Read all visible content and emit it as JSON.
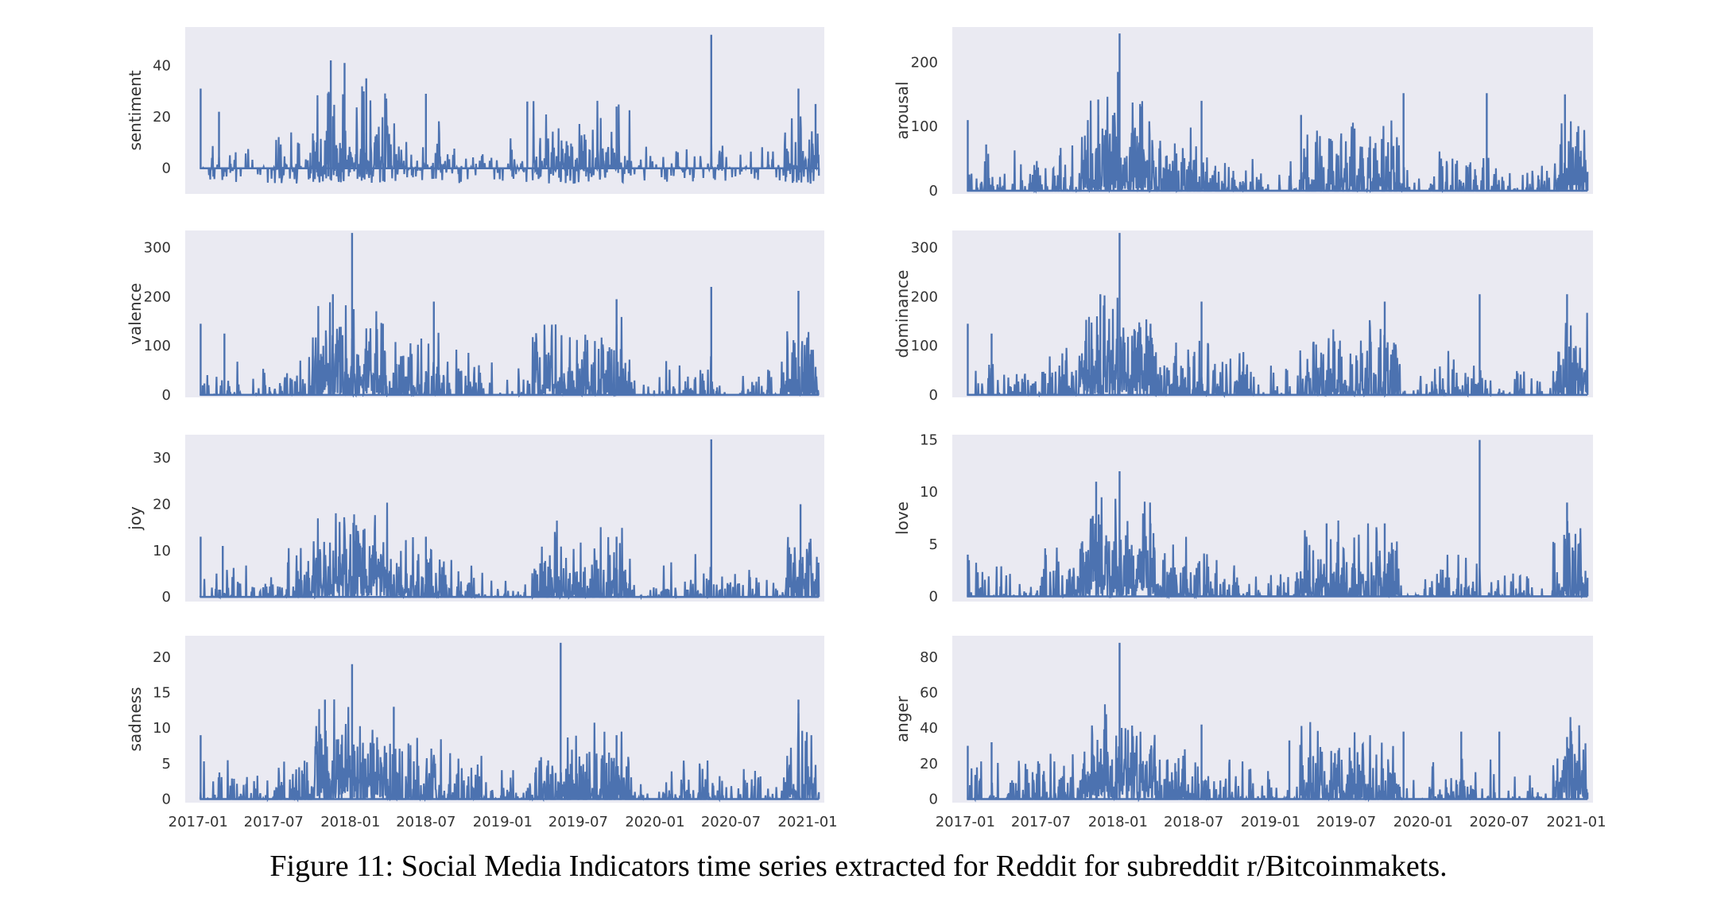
{
  "caption": "Figure 11: Social Media Indicators time series extracted for Reddit for subreddit r/Bitcoinmakets.",
  "colors": {
    "panel_bg": "#eaeaf2",
    "series": "#4c72b0",
    "text": "#333333"
  },
  "chart_data": [
    {
      "type": "line",
      "ylabel": "sentiment",
      "yticks": [
        0,
        20,
        40
      ],
      "ylim": [
        -10,
        55
      ],
      "baseline": 0,
      "xticks": [
        "2017-01",
        "2017-07",
        "2018-01",
        "2018-07",
        "2019-01",
        "2019-07",
        "2020-01",
        "2020-07",
        "2021-01"
      ],
      "xlim": [
        "2016-12-01",
        "2021-02-10"
      ],
      "grid": false,
      "peaks": [
        [
          "2017-01-07",
          31
        ],
        [
          "2017-02-20",
          22
        ],
        [
          "2017-11-15",
          42
        ],
        [
          "2017-12-18",
          41
        ],
        [
          "2018-02-08",
          35
        ],
        [
          "2018-07-01",
          29
        ],
        [
          "2019-03-01",
          26
        ],
        [
          "2019-10-01",
          24
        ],
        [
          "2020-05-15",
          52
        ],
        [
          "2020-12-10",
          31
        ],
        [
          "2021-01-20",
          25
        ]
      ]
    },
    {
      "type": "line",
      "ylabel": "arousal",
      "yticks": [
        0,
        100,
        200
      ],
      "ylim": [
        -5,
        255
      ],
      "baseline": 0,
      "xticks": [
        "2017-01",
        "2017-07",
        "2018-01",
        "2018-07",
        "2019-01",
        "2019-07",
        "2020-01",
        "2020-07",
        "2021-01"
      ],
      "xlim": [
        "2016-12-01",
        "2021-02-10"
      ],
      "grid": false,
      "peaks": [
        [
          "2017-01-07",
          110
        ],
        [
          "2017-02-20",
          72
        ],
        [
          "2017-11-15",
          142
        ],
        [
          "2018-01-05",
          245
        ],
        [
          "2018-01-01",
          185
        ],
        [
          "2018-07-20",
          140
        ],
        [
          "2019-03-15",
          118
        ],
        [
          "2019-11-15",
          152
        ],
        [
          "2020-06-01",
          152
        ],
        [
          "2020-12-05",
          150
        ]
      ]
    },
    {
      "type": "line",
      "ylabel": "valence",
      "yticks": [
        0,
        100,
        200,
        300
      ],
      "ylim": [
        -5,
        335
      ],
      "baseline": 0,
      "xticks": [
        "2017-01",
        "2017-07",
        "2018-01",
        "2018-07",
        "2019-01",
        "2019-07",
        "2020-01",
        "2020-07",
        "2021-01"
      ],
      "xlim": [
        "2016-12-01",
        "2021-02-10"
      ],
      "grid": false,
      "peaks": [
        [
          "2017-01-07",
          145
        ],
        [
          "2017-03-05",
          125
        ],
        [
          "2017-11-20",
          205
        ],
        [
          "2018-01-05",
          330
        ],
        [
          "2018-03-20",
          145
        ],
        [
          "2018-07-20",
          190
        ],
        [
          "2019-10-01",
          195
        ],
        [
          "2020-05-15",
          220
        ],
        [
          "2020-12-10",
          212
        ]
      ]
    },
    {
      "type": "line",
      "ylabel": "dominance",
      "yticks": [
        0,
        100,
        200,
        300
      ],
      "ylim": [
        -5,
        335
      ],
      "baseline": 0,
      "xticks": [
        "2017-01",
        "2017-07",
        "2018-01",
        "2018-07",
        "2019-01",
        "2019-07",
        "2020-01",
        "2020-07",
        "2021-01"
      ],
      "xlim": [
        "2016-12-01",
        "2021-02-10"
      ],
      "grid": false,
      "peaks": [
        [
          "2017-01-07",
          145
        ],
        [
          "2017-03-05",
          125
        ],
        [
          "2017-11-20",
          205
        ],
        [
          "2018-01-05",
          330
        ],
        [
          "2018-03-20",
          145
        ],
        [
          "2018-07-20",
          190
        ],
        [
          "2019-10-01",
          190
        ],
        [
          "2020-05-15",
          205
        ],
        [
          "2020-12-10",
          205
        ]
      ]
    },
    {
      "type": "line",
      "ylabel": "joy",
      "yticks": [
        0,
        10,
        20,
        30
      ],
      "ylim": [
        -1,
        35
      ],
      "baseline": 0,
      "xticks": [
        "2017-01",
        "2017-07",
        "2018-01",
        "2018-07",
        "2019-01",
        "2019-07",
        "2020-01",
        "2020-07",
        "2021-01"
      ],
      "xlim": [
        "2016-12-01",
        "2021-02-10"
      ],
      "grid": false,
      "peaks": [
        [
          "2017-01-07",
          13
        ],
        [
          "2017-03-01",
          11
        ],
        [
          "2018-01-08",
          16
        ],
        [
          "2018-07-01",
          13
        ],
        [
          "2019-10-01",
          13
        ],
        [
          "2020-05-15",
          34
        ],
        [
          "2020-12-15",
          20
        ]
      ]
    },
    {
      "type": "line",
      "ylabel": "love",
      "yticks": [
        0,
        5,
        10,
        15
      ],
      "ylim": [
        -0.5,
        15.5
      ],
      "baseline": 0,
      "xticks": [
        "2017-01",
        "2017-07",
        "2018-01",
        "2018-07",
        "2019-01",
        "2019-07",
        "2020-01",
        "2020-07",
        "2021-01"
      ],
      "xlim": [
        "2016-12-01",
        "2021-02-10"
      ],
      "grid": false,
      "peaks": [
        [
          "2017-01-07",
          4
        ],
        [
          "2017-11-10",
          11
        ],
        [
          "2018-01-05",
          12
        ],
        [
          "2018-03-20",
          7
        ],
        [
          "2019-05-15",
          7
        ],
        [
          "2019-10-01",
          7
        ],
        [
          "2020-05-15",
          15
        ],
        [
          "2020-12-10",
          9
        ]
      ]
    },
    {
      "type": "line",
      "ylabel": "sadness",
      "yticks": [
        0,
        5,
        10,
        15,
        20
      ],
      "ylim": [
        -0.5,
        23
      ],
      "baseline": 0,
      "xticks": [
        "2017-01",
        "2017-07",
        "2018-01",
        "2018-07",
        "2019-01",
        "2019-07",
        "2020-01",
        "2020-07",
        "2021-01"
      ],
      "xlim": [
        "2016-12-01",
        "2021-02-10"
      ],
      "grid": false,
      "peaks": [
        [
          "2017-01-07",
          9
        ],
        [
          "2017-11-01",
          14
        ],
        [
          "2018-01-05",
          19
        ],
        [
          "2018-04-15",
          13
        ],
        [
          "2019-05-20",
          22
        ],
        [
          "2019-10-01",
          9
        ],
        [
          "2020-12-10",
          14
        ]
      ]
    },
    {
      "type": "line",
      "ylabel": "anger",
      "yticks": [
        0,
        20,
        40,
        60,
        80
      ],
      "ylim": [
        -2,
        92
      ],
      "baseline": 0,
      "xticks": [
        "2017-01",
        "2017-07",
        "2018-01",
        "2018-07",
        "2019-01",
        "2019-07",
        "2020-01",
        "2020-07",
        "2021-01"
      ],
      "xlim": [
        "2016-12-01",
        "2021-02-10"
      ],
      "grid": false,
      "peaks": [
        [
          "2017-01-07",
          30
        ],
        [
          "2017-03-05",
          32
        ],
        [
          "2018-01-05",
          88
        ],
        [
          "2018-07-20",
          42
        ],
        [
          "2019-02-15",
          33
        ],
        [
          "2019-11-15",
          38
        ],
        [
          "2020-04-01",
          38
        ],
        [
          "2020-07-01",
          38
        ],
        [
          "2020-12-10",
          35
        ]
      ]
    }
  ]
}
